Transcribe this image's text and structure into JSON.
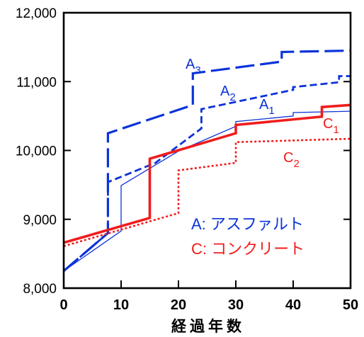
{
  "chart_data": {
    "type": "line",
    "title": "",
    "xlabel": "経過年数",
    "ylabel": "",
    "xlim": [
      0,
      50
    ],
    "ylim": [
      8000,
      12000
    ],
    "grid": false,
    "x_ticks": [
      {
        "value": 0,
        "label": "0"
      },
      {
        "value": 10,
        "label": "10"
      },
      {
        "value": 20,
        "label": "20"
      },
      {
        "value": 30,
        "label": "30"
      },
      {
        "value": 40,
        "label": "40"
      },
      {
        "value": 50,
        "label": "50"
      }
    ],
    "y_ticks": [
      {
        "value": 8000,
        "label": "8,000"
      },
      {
        "value": 9000,
        "label": "9,000"
      },
      {
        "value": 10000,
        "label": "10,000"
      },
      {
        "value": 11000,
        "label": "11,000"
      },
      {
        "value": 12000,
        "label": "12,000"
      }
    ],
    "legend": {
      "placement": "lower-right",
      "entries": [
        {
          "text": "A: アスファルト",
          "color": "#0b33d9"
        },
        {
          "text": "C: コンクリート",
          "color": "#f01c1c"
        }
      ]
    },
    "series": [
      {
        "name": "A1",
        "color": "#0b33d9",
        "style": "thin-solid",
        "points": [
          [
            0,
            8250
          ],
          [
            10,
            8830
          ],
          [
            10,
            9490
          ],
          [
            20,
            9990
          ],
          [
            30,
            10350
          ],
          [
            30,
            10420
          ],
          [
            40,
            10500
          ],
          [
            40,
            10550
          ],
          [
            50,
            10570
          ]
        ]
      },
      {
        "name": "A2",
        "color": "#0b33d9",
        "style": "dash",
        "points": [
          [
            0,
            8250
          ],
          [
            7.7,
            8800
          ],
          [
            7.7,
            9540
          ],
          [
            16,
            9820
          ],
          [
            24,
            10320
          ],
          [
            24,
            10600
          ],
          [
            40,
            10880
          ],
          [
            40,
            10920
          ],
          [
            48,
            10990
          ],
          [
            48,
            11080
          ],
          [
            50,
            11080
          ]
        ]
      },
      {
        "name": "A3",
        "color": "#0b33d9",
        "style": "long-dash",
        "points": [
          [
            0,
            8250
          ],
          [
            7.7,
            8800
          ],
          [
            7.7,
            10250
          ],
          [
            22.5,
            10660
          ],
          [
            22.5,
            11120
          ],
          [
            38,
            11290
          ],
          [
            38,
            11430
          ],
          [
            50,
            11450
          ]
        ]
      },
      {
        "name": "C1",
        "color": "#f01c1c",
        "style": "thick-solid",
        "points": [
          [
            0,
            8660
          ],
          [
            15,
            9020
          ],
          [
            15,
            9880
          ],
          [
            30,
            10250
          ],
          [
            30,
            10370
          ],
          [
            45,
            10490
          ],
          [
            45,
            10630
          ],
          [
            50,
            10660
          ]
        ]
      },
      {
        "name": "C2",
        "color": "#f01c1c",
        "style": "dotted",
        "points": [
          [
            0,
            8610
          ],
          [
            20,
            9090
          ],
          [
            20,
            9710
          ],
          [
            30,
            9820
          ],
          [
            30,
            10120
          ],
          [
            50,
            10170
          ]
        ]
      }
    ]
  }
}
